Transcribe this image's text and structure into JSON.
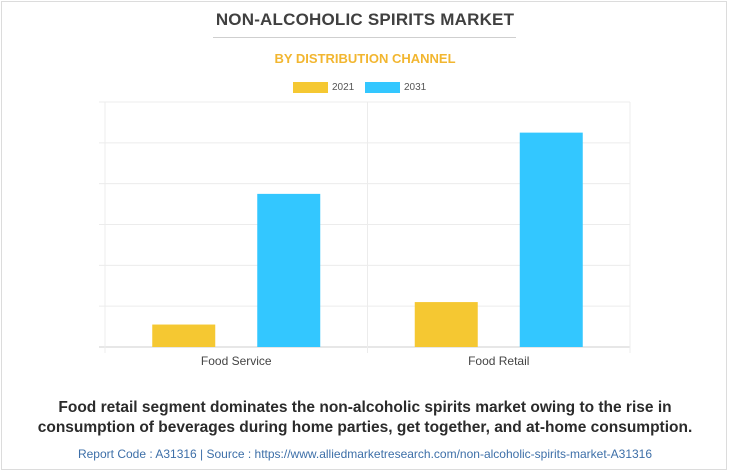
{
  "title": "NON-ALCOHOLIC SPIRITS MARKET",
  "subtitle": "BY DISTRIBUTION CHANNEL",
  "colors": {
    "2021": "#f5c832",
    "2031": "#33c7ff",
    "subtitle": "#f2b630",
    "source": "#3d6fa8"
  },
  "chart_data": {
    "type": "bar",
    "categories": [
      "Food Service",
      "Food Retail"
    ],
    "series": [
      {
        "name": "2021",
        "values": [
          0.55,
          1.1
        ]
      },
      {
        "name": "2031",
        "values": [
          3.75,
          5.25
        ]
      }
    ],
    "ylim": [
      0,
      6
    ],
    "grid": true,
    "legend": "top-center",
    "xlabel": "",
    "ylabel": ""
  },
  "caption_line1": "Food retail segment dominates the non-alcoholic spirits market owing to the rise in",
  "caption_line2": "consumption of beverages during home parties, get together, and at-home consumption.",
  "source": "Report Code : A31316  |  Source : https://www.alliedmarketresearch.com/non-alcoholic-spirits-market-A31316"
}
